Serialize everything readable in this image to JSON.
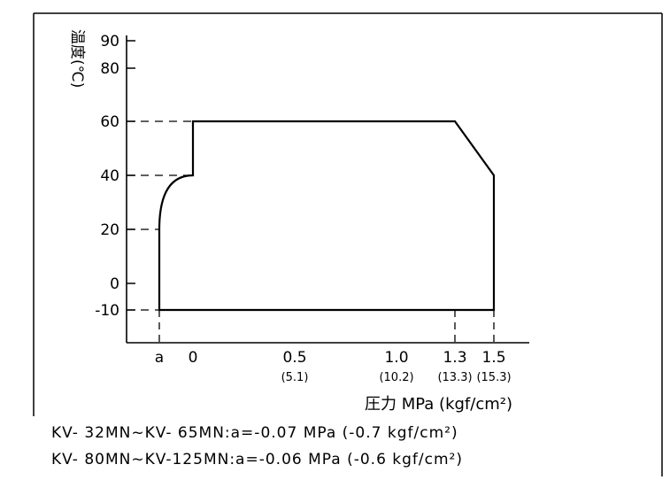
{
  "chart_data": {
    "type": "area",
    "ylabel": "温度(℃)",
    "xlabel": "圧力 MPa (kgf/cm²)",
    "y_ticks": [
      {
        "value": 90,
        "label": "90"
      },
      {
        "value": 80,
        "label": "80"
      },
      {
        "value": 60,
        "label": "60"
      },
      {
        "value": 40,
        "label": "40"
      },
      {
        "value": 20,
        "label": "20"
      },
      {
        "value": 0,
        "label": "0"
      },
      {
        "value": -10,
        "label": "-10"
      }
    ],
    "x_ticks": [
      {
        "value": -0.1,
        "label": "a",
        "sub": ""
      },
      {
        "value": 0,
        "label": "0",
        "sub": ""
      },
      {
        "value": 0.5,
        "label": "0.5",
        "sub": "(5.1)"
      },
      {
        "value": 1.0,
        "label": "1.0",
        "sub": "(10.2)"
      },
      {
        "value": 1.3,
        "label": "1.3",
        "sub": "(13.3)"
      },
      {
        "value": 1.5,
        "label": "1.5",
        "sub": "(15.3)"
      }
    ],
    "outline": [
      {
        "x": -0.1,
        "y": -10
      },
      {
        "x": -0.1,
        "y": 20
      },
      {
        "x": 0,
        "y": 40
      },
      {
        "x": 0,
        "y": 60
      },
      {
        "x": 1.3,
        "y": 60
      },
      {
        "x": 1.5,
        "y": 40
      },
      {
        "x": 1.5,
        "y": -10
      }
    ],
    "dashed_y_refs": [
      60,
      40,
      20,
      -10
    ],
    "dashed_x_refs": [
      -0.1,
      1.3,
      1.5
    ],
    "notes": [
      "KV- 32MN~KV- 65MN:a=-0.07 MPa (-0.7 kgf/cm²)",
      "KV- 80MN~KV-125MN:a=-0.06 MPa (-0.6 kgf/cm²)"
    ]
  }
}
